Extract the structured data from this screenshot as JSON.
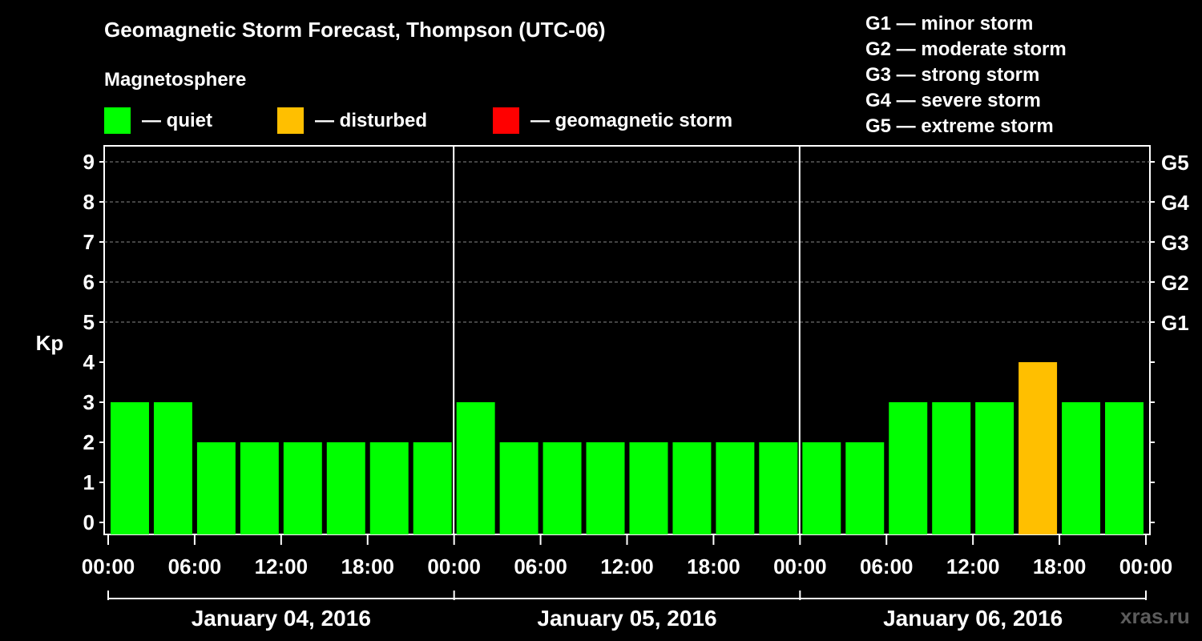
{
  "chart_data": {
    "type": "bar",
    "title": "Geomagnetic Storm Forecast, Thompson (UTC-06)",
    "subtitle": "Magnetosphere",
    "ylabel": "Kp",
    "ylim": [
      0,
      9
    ],
    "yticks": [
      "0",
      "1",
      "2",
      "3",
      "4",
      "5",
      "6",
      "7",
      "8",
      "9"
    ],
    "right_ticks": [
      {
        "kp": 5,
        "label": "G1"
      },
      {
        "kp": 6,
        "label": "G2"
      },
      {
        "kp": 7,
        "label": "G3"
      },
      {
        "kp": 8,
        "label": "G4"
      },
      {
        "kp": 9,
        "label": "G5"
      }
    ],
    "xticks": [
      "00:00",
      "06:00",
      "12:00",
      "18:00",
      "00:00",
      "06:00",
      "12:00",
      "18:00",
      "00:00",
      "06:00",
      "12:00",
      "18:00",
      "00:00"
    ],
    "days": [
      "January 04, 2016",
      "January 05, 2016",
      "January 06, 2016"
    ],
    "values": [
      3,
      3,
      2,
      2,
      2,
      2,
      2,
      2,
      3,
      2,
      2,
      2,
      2,
      2,
      2,
      2,
      2,
      2,
      3,
      3,
      3,
      4,
      3,
      3
    ],
    "status": [
      "quiet",
      "quiet",
      "quiet",
      "quiet",
      "quiet",
      "quiet",
      "quiet",
      "quiet",
      "quiet",
      "quiet",
      "quiet",
      "quiet",
      "quiet",
      "quiet",
      "quiet",
      "quiet",
      "quiet",
      "quiet",
      "quiet",
      "quiet",
      "quiet",
      "disturbed",
      "quiet",
      "quiet"
    ],
    "legend": [
      {
        "key": "quiet",
        "label": "— quiet",
        "color": "#00ff00"
      },
      {
        "key": "disturbed",
        "label": "— disturbed",
        "color": "#ffbf00"
      },
      {
        "key": "storm",
        "label": "— geomagnetic storm",
        "color": "#ff0000"
      }
    ],
    "storm_scale": [
      "G1 — minor storm",
      "G2 — moderate storm",
      "G3 — strong storm",
      "G4 — severe storm",
      "G5 — extreme storm"
    ]
  },
  "watermark": "xras.ru"
}
